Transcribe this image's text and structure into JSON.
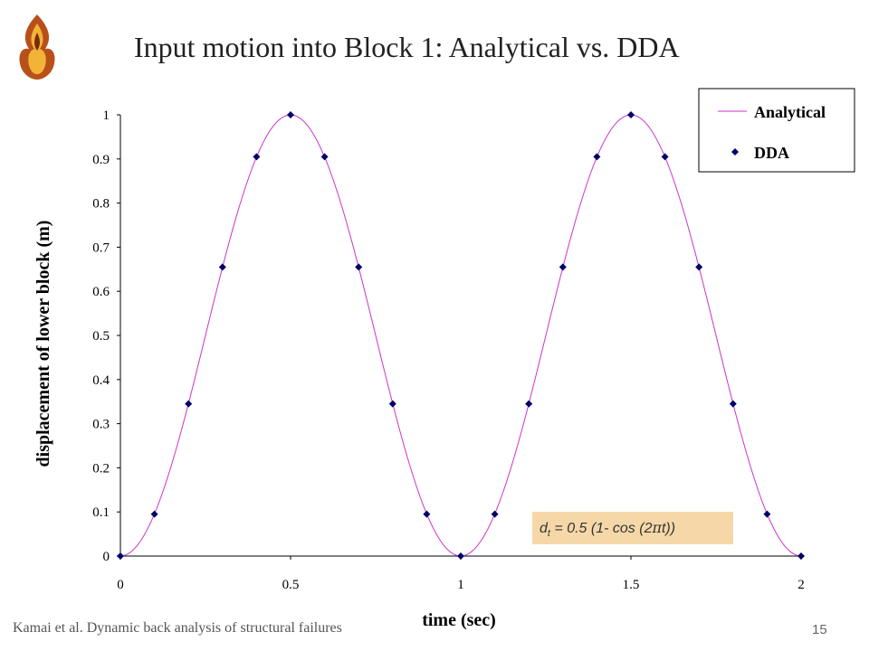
{
  "slide": {
    "title": "Input motion into Block 1: Analytical vs. DDA",
    "footer_credit": "Kamai et al. Dynamic back analysis of structural failures",
    "slide_number": "15",
    "logo_icon": "flame-logo-icon"
  },
  "formula": {
    "prefix": "d",
    "subscript": "t",
    "pre_pi": " = 0.5 (1- cos (2",
    "pi": "π",
    "post_pi": "t))",
    "background": "#f6d8a8"
  },
  "chart_data": {
    "type": "line",
    "xlabel": "time (sec)",
    "ylabel": "displacement of lower block (m)",
    "xlim": [
      0,
      2
    ],
    "ylim": [
      0,
      1
    ],
    "xticks": [
      "0",
      "0.5",
      "1",
      "1.5",
      "2"
    ],
    "yticks": [
      "0",
      "0.1",
      "0.2",
      "0.3",
      "0.4",
      "0.5",
      "0.6",
      "0.7",
      "0.8",
      "0.9",
      "1"
    ],
    "grid": false,
    "legend_position": "top-right",
    "series": [
      {
        "name": "Analytical",
        "style": "line",
        "color": "#cc33cc",
        "function": "0.5*(1-cos(2*pi*t))"
      },
      {
        "name": "DDA",
        "style": "markers",
        "marker": "diamond",
        "color": "#000066",
        "x": [
          0,
          0.1,
          0.2,
          0.3,
          0.4,
          0.5,
          0.6,
          0.7,
          0.8,
          0.9,
          1.0,
          1.1,
          1.2,
          1.3,
          1.4,
          1.5,
          1.6,
          1.7,
          1.8,
          1.9,
          2.0
        ],
        "y": [
          0,
          0.095,
          0.345,
          0.655,
          0.905,
          1.0,
          0.905,
          0.655,
          0.345,
          0.095,
          0,
          0.095,
          0.345,
          0.655,
          0.905,
          1.0,
          0.905,
          0.655,
          0.345,
          0.095,
          0
        ]
      }
    ]
  }
}
